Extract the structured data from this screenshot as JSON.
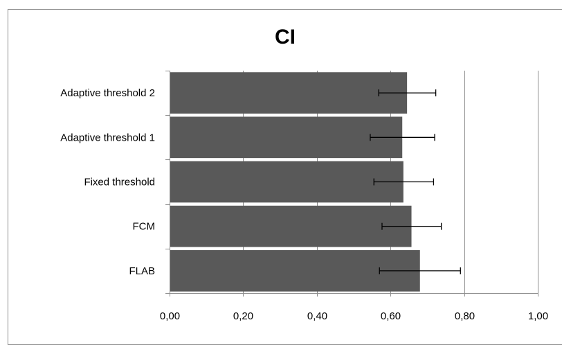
{
  "chart_data": {
    "type": "bar",
    "orientation": "horizontal",
    "title": "CI",
    "xlabel": "",
    "ylabel": "",
    "categories": [
      "Adaptive threshold 2",
      "Adaptive threshold 1",
      "Fixed threshold",
      "FCM",
      "FLAB"
    ],
    "values": [
      0.645,
      0.632,
      0.635,
      0.657,
      0.68
    ],
    "error_low": [
      0.568,
      0.545,
      0.555,
      0.577,
      0.57
    ],
    "error_high": [
      0.723,
      0.72,
      0.717,
      0.738,
      0.79
    ],
    "xlim": [
      0,
      1
    ],
    "xticks": [
      "0,00",
      "0,20",
      "0,40",
      "0,60",
      "0,80",
      "1,00"
    ],
    "gridlines": "vertical major",
    "bar_color": "#595959",
    "error_bar_color": "#000000",
    "legend": "none"
  }
}
